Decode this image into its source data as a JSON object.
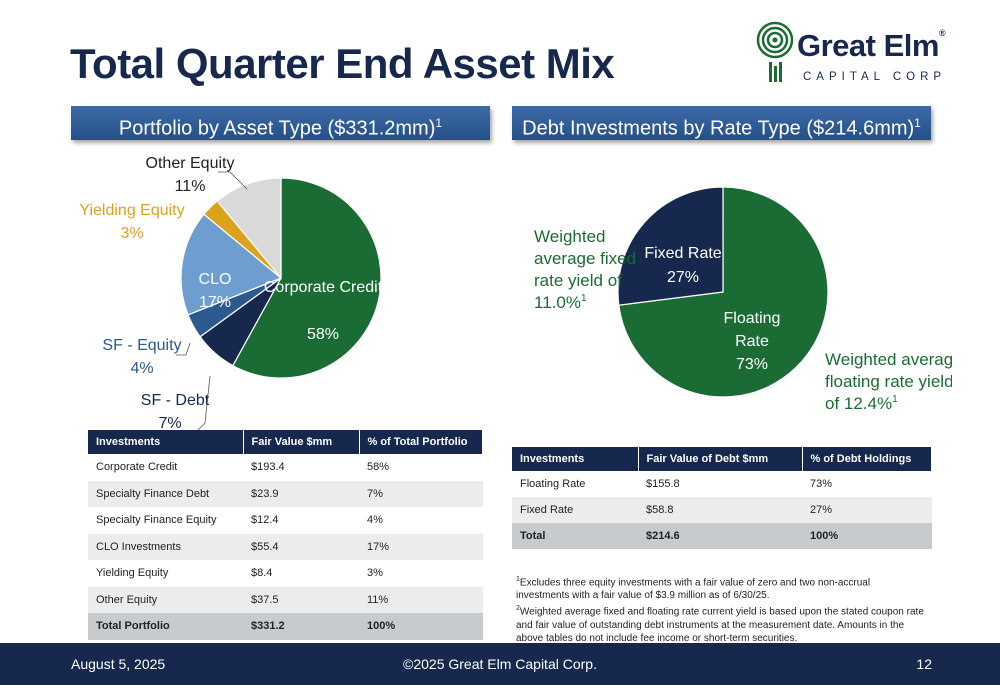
{
  "title": "Total Quarter End Asset Mix",
  "logo": {
    "name": "Great Elm",
    "registered": "®",
    "subtitle": "CAPITAL CORP"
  },
  "left_section": {
    "banner": "Portfolio by Asset Type ($331.2mm)",
    "banner_sup": "1"
  },
  "right_section": {
    "banner": "Debt Investments by Rate Type ($214.6mm)",
    "banner_sup": "1"
  },
  "chart_data": [
    {
      "type": "pie",
      "slices": [
        {
          "label": "Corporate Credit",
          "value": 58,
          "display": "58%",
          "color": "#1b6b35"
        },
        {
          "label": "SF - Debt",
          "value": 7,
          "display": "7%",
          "color": "#16284e"
        },
        {
          "label": "SF - Equity",
          "value": 4,
          "display": "4%",
          "color": "#2d5a8e"
        },
        {
          "label": "CLO",
          "value": 17,
          "display": "17%",
          "color": "#6e9ed0"
        },
        {
          "label": "Yielding Equity",
          "value": 3,
          "display": "3%",
          "color": "#dba21c"
        },
        {
          "label": "Other Equity",
          "value": 11,
          "display": "11%",
          "color": "#d9d9d9"
        }
      ]
    },
    {
      "type": "pie",
      "slices": [
        {
          "label": "Floating Rate",
          "value": 73,
          "display": "73%",
          "color": "#1b6b35"
        },
        {
          "label": "Fixed Rate",
          "value": 27,
          "display": "27%",
          "color": "#16284e"
        }
      ],
      "annotations": [
        {
          "lines": [
            "Weighted",
            "average fixed",
            "rate yield of",
            "11.0%"
          ],
          "sup": "1"
        },
        {
          "lines": [
            "Weighted average",
            "floating rate yield",
            "of 12.4%"
          ],
          "sup": "1"
        }
      ]
    }
  ],
  "table_left": {
    "headers": [
      "Investments",
      "Fair Value $mm",
      "% of Total Portfolio"
    ],
    "rows": [
      [
        "Corporate Credit",
        "$193.4",
        "58%"
      ],
      [
        "Specialty Finance Debt",
        "$23.9",
        "7%"
      ],
      [
        "Specialty Finance Equity",
        "$12.4",
        "4%"
      ],
      [
        "CLO Investments",
        "$55.4",
        "17%"
      ],
      [
        "Yielding Equity",
        "$8.4",
        "3%"
      ],
      [
        "Other Equity",
        "$37.5",
        "11%"
      ],
      [
        "Total Portfolio",
        "$331.2",
        "100%"
      ]
    ]
  },
  "table_right": {
    "headers": [
      "Investments",
      "Fair Value of Debt $mm",
      "% of Debt Holdings"
    ],
    "rows": [
      [
        "Floating Rate",
        "$155.8",
        "73%"
      ],
      [
        "Fixed Rate",
        "$58.8",
        "27%"
      ],
      [
        "Total",
        "$214.6",
        "100%"
      ]
    ]
  },
  "footnotes": {
    "note1_num": "1",
    "note1": "Excludes three equity investments with a fair value of zero and two non-accrual investments with a fair value of $3.9 million as of 6/30/25.",
    "note2_num": "2",
    "note2": "Weighted average fixed and floating rate current yield is based upon the stated coupon rate and fair value of outstanding debt instruments at the measurement date. Amounts in the above tables do not include fee income or short-term securities."
  },
  "footer": {
    "date": "August 5, 2025",
    "copyright": "©2025 Great Elm Capital Corp.",
    "page": "12"
  }
}
